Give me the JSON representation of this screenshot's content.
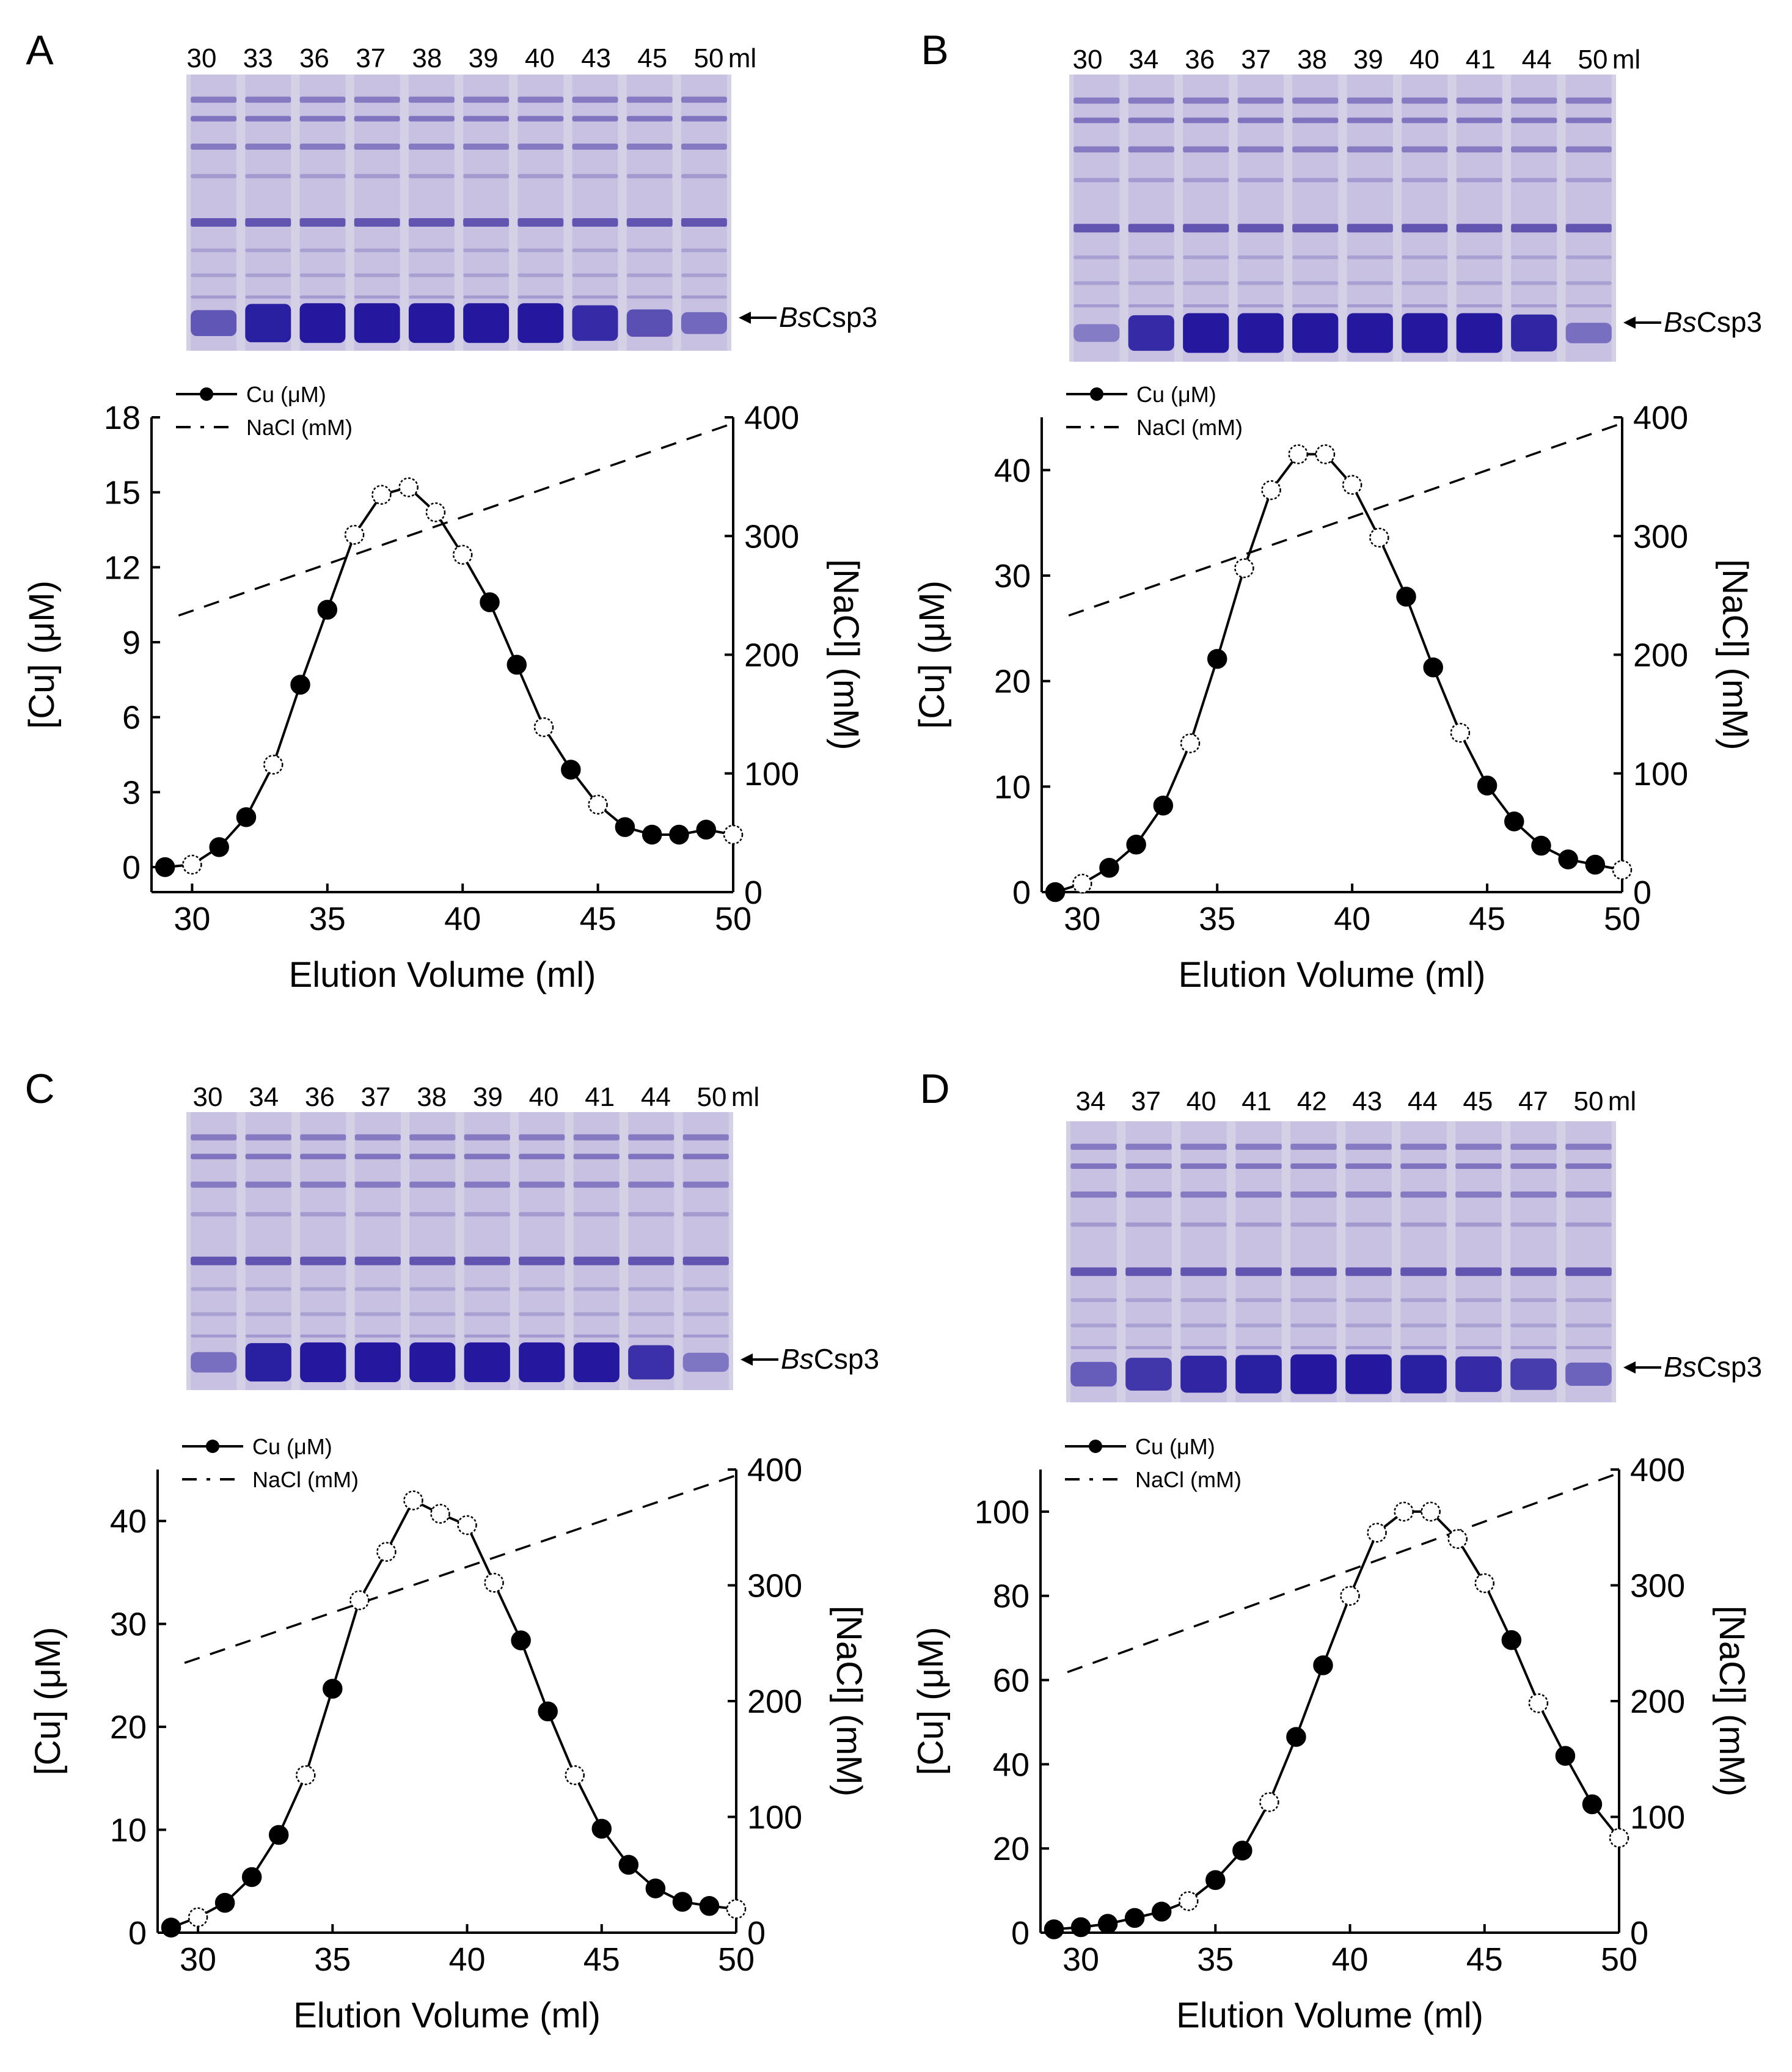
{
  "panels": [
    {
      "letter": "A",
      "lanes": [
        "30",
        "33",
        "36",
        "37",
        "38",
        "39",
        "40",
        "43",
        "45",
        "50"
      ],
      "lane_unit": "ml",
      "marker": {
        "italic": "Bs",
        "rest": "Csp3"
      },
      "legend": {
        "cu": "Cu (μM)",
        "nacl": "NaCl (mM)"
      },
      "gel_strength": [
        0.5,
        0.95,
        1.0,
        1.0,
        1.0,
        1.0,
        1.0,
        0.85,
        0.55,
        0.35
      ]
    },
    {
      "letter": "B",
      "lanes": [
        "30",
        "34",
        "36",
        "37",
        "38",
        "39",
        "40",
        "41",
        "44",
        "50"
      ],
      "lane_unit": "ml",
      "marker": {
        "italic": "Bs",
        "rest": "Csp3"
      },
      "legend": {
        "cu": "Cu (μM)",
        "nacl": "NaCl (mM)"
      },
      "gel_strength": [
        0.2,
        0.85,
        1.0,
        1.0,
        1.0,
        1.0,
        1.0,
        1.0,
        0.9,
        0.3
      ]
    },
    {
      "letter": "C",
      "lanes": [
        "30",
        "34",
        "36",
        "37",
        "38",
        "39",
        "40",
        "41",
        "44",
        "50"
      ],
      "lane_unit": "ml",
      "marker": {
        "italic": "Bs",
        "rest": "Csp3"
      },
      "legend": {
        "cu": "Cu (μM)",
        "nacl": "NaCl (mM)"
      },
      "gel_strength": [
        0.3,
        0.95,
        1.0,
        1.0,
        1.0,
        1.0,
        1.0,
        1.0,
        0.8,
        0.25
      ]
    },
    {
      "letter": "D",
      "lanes": [
        "34",
        "37",
        "40",
        "41",
        "42",
        "43",
        "44",
        "45",
        "47",
        "50"
      ],
      "lane_unit": "ml",
      "marker": {
        "italic": "Bs",
        "rest": "Csp3"
      },
      "legend": {
        "cu": "Cu (μM)",
        "nacl": "NaCl (mM)"
      },
      "gel_strength": [
        0.45,
        0.75,
        0.9,
        0.95,
        1.0,
        1.0,
        0.95,
        0.85,
        0.7,
        0.4
      ]
    }
  ],
  "chart_data": [
    {
      "type": "line",
      "title": "A",
      "xlabel": "Elution Volume (ml)",
      "ylabel": "[Cu] (μM)",
      "y2label": "[NaCl] (mM)",
      "xlim": [
        28.5,
        50
      ],
      "ylim": [
        -1,
        18
      ],
      "y2lim": [
        0,
        400
      ],
      "xticks": [
        30,
        35,
        40,
        45,
        50
      ],
      "yticks": [
        0,
        3,
        6,
        9,
        12,
        15,
        18
      ],
      "y2ticks": [
        0,
        100,
        200,
        300,
        400
      ],
      "series": [
        {
          "name": "Cu (μM)",
          "x": [
            29,
            30,
            31,
            32,
            33,
            34,
            35,
            36,
            37,
            38,
            39,
            40,
            41,
            42,
            43,
            44,
            45,
            46,
            47,
            48,
            49,
            50
          ],
          "values": [
            0.0,
            0.1,
            0.8,
            2.0,
            4.1,
            7.3,
            10.3,
            13.3,
            14.9,
            15.2,
            14.2,
            12.5,
            10.6,
            8.1,
            5.6,
            3.9,
            2.5,
            1.6,
            1.3,
            1.3,
            1.5,
            1.3
          ],
          "filled": [
            true,
            false,
            true,
            true,
            false,
            true,
            true,
            false,
            false,
            false,
            false,
            false,
            true,
            true,
            false,
            true,
            false,
            true,
            true,
            true,
            true,
            false
          ]
        },
        {
          "name": "NaCl (mM)",
          "axis": "right",
          "style": "dashed",
          "x": [
            29.5,
            50
          ],
          "values": [
            233,
            395
          ]
        }
      ]
    },
    {
      "type": "line",
      "title": "B",
      "xlabel": "Elution Volume (ml)",
      "ylabel": "[Cu] (μM)",
      "y2label": "[NaCl] (mM)",
      "xlim": [
        28.5,
        50
      ],
      "ylim": [
        0,
        45
      ],
      "y2lim": [
        0,
        400
      ],
      "xticks": [
        30,
        35,
        40,
        45,
        50
      ],
      "yticks": [
        0,
        10,
        20,
        30,
        40
      ],
      "y2ticks": [
        0,
        100,
        200,
        300,
        400
      ],
      "series": [
        {
          "name": "Cu (μM)",
          "x": [
            29,
            30,
            31,
            32,
            33,
            34,
            35,
            36,
            37,
            38,
            39,
            40,
            41,
            42,
            43,
            44,
            45,
            46,
            47,
            48,
            49,
            50
          ],
          "values": [
            0.0,
            0.8,
            2.3,
            4.5,
            8.2,
            14.1,
            22.1,
            30.7,
            38.1,
            41.5,
            41.5,
            38.6,
            33.6,
            28.0,
            21.3,
            15.1,
            10.1,
            6.7,
            4.4,
            3.1,
            2.6,
            2.1
          ],
          "filled": [
            true,
            false,
            true,
            true,
            true,
            false,
            true,
            false,
            false,
            false,
            false,
            false,
            false,
            true,
            true,
            false,
            true,
            true,
            true,
            true,
            true,
            false
          ]
        },
        {
          "name": "NaCl (mM)",
          "axis": "right",
          "style": "dashed",
          "x": [
            29.5,
            50
          ],
          "values": [
            233,
            395
          ]
        }
      ]
    },
    {
      "type": "line",
      "title": "C",
      "xlabel": "Elution Volume (ml)",
      "ylabel": "[Cu] (μM)",
      "y2label": "[NaCl] (mM)",
      "xlim": [
        28.5,
        50
      ],
      "ylim": [
        0,
        45
      ],
      "y2lim": [
        0,
        400
      ],
      "xticks": [
        30,
        35,
        40,
        45,
        50
      ],
      "yticks": [
        0,
        10,
        20,
        30,
        40
      ],
      "y2ticks": [
        0,
        100,
        200,
        300,
        400
      ],
      "series": [
        {
          "name": "Cu (μM)",
          "x": [
            29,
            30,
            31,
            32,
            33,
            34,
            35,
            36,
            37,
            38,
            39,
            40,
            41,
            42,
            43,
            44,
            45,
            46,
            47,
            48,
            49,
            50
          ],
          "values": [
            0.5,
            1.5,
            2.9,
            5.4,
            9.5,
            15.3,
            23.7,
            32.3,
            37.0,
            42.0,
            40.7,
            39.6,
            34.0,
            28.4,
            21.5,
            15.3,
            10.1,
            6.6,
            4.3,
            3.0,
            2.6,
            2.3
          ],
          "filled": [
            true,
            false,
            true,
            true,
            true,
            false,
            true,
            false,
            false,
            false,
            false,
            false,
            false,
            true,
            true,
            false,
            true,
            true,
            true,
            true,
            true,
            false
          ]
        },
        {
          "name": "NaCl (mM)",
          "axis": "right",
          "style": "dashed",
          "x": [
            29.5,
            50
          ],
          "values": [
            233,
            395
          ]
        }
      ]
    },
    {
      "type": "line",
      "title": "D",
      "xlabel": "Elution Volume (ml)",
      "ylabel": "[Cu] (μM)",
      "y2label": "[NaCl] (mM)",
      "xlim": [
        28.5,
        50
      ],
      "ylim": [
        0,
        110
      ],
      "y2lim": [
        0,
        400
      ],
      "xticks": [
        30,
        35,
        40,
        45,
        50
      ],
      "yticks": [
        0,
        20,
        40,
        60,
        80,
        100
      ],
      "y2ticks": [
        0,
        100,
        200,
        300,
        400
      ],
      "series": [
        {
          "name": "Cu (μM)",
          "x": [
            29,
            30,
            31,
            32,
            33,
            34,
            35,
            36,
            37,
            38,
            39,
            40,
            41,
            42,
            43,
            44,
            45,
            46,
            47,
            48,
            49,
            50
          ],
          "values": [
            0.8,
            1.3,
            2.1,
            3.5,
            5.0,
            7.5,
            12.5,
            19.5,
            31.0,
            46.5,
            63.5,
            80.0,
            95.0,
            100.0,
            100.0,
            93.5,
            83.0,
            69.5,
            54.5,
            42.0,
            30.5,
            22.5
          ],
          "filled": [
            true,
            true,
            true,
            true,
            true,
            false,
            true,
            true,
            false,
            true,
            true,
            false,
            false,
            false,
            false,
            false,
            false,
            true,
            false,
            true,
            true,
            false
          ]
        },
        {
          "name": "NaCl (mM)",
          "axis": "right",
          "style": "dashed",
          "x": [
            29.5,
            50
          ],
          "values": [
            225,
            397
          ]
        }
      ]
    }
  ]
}
